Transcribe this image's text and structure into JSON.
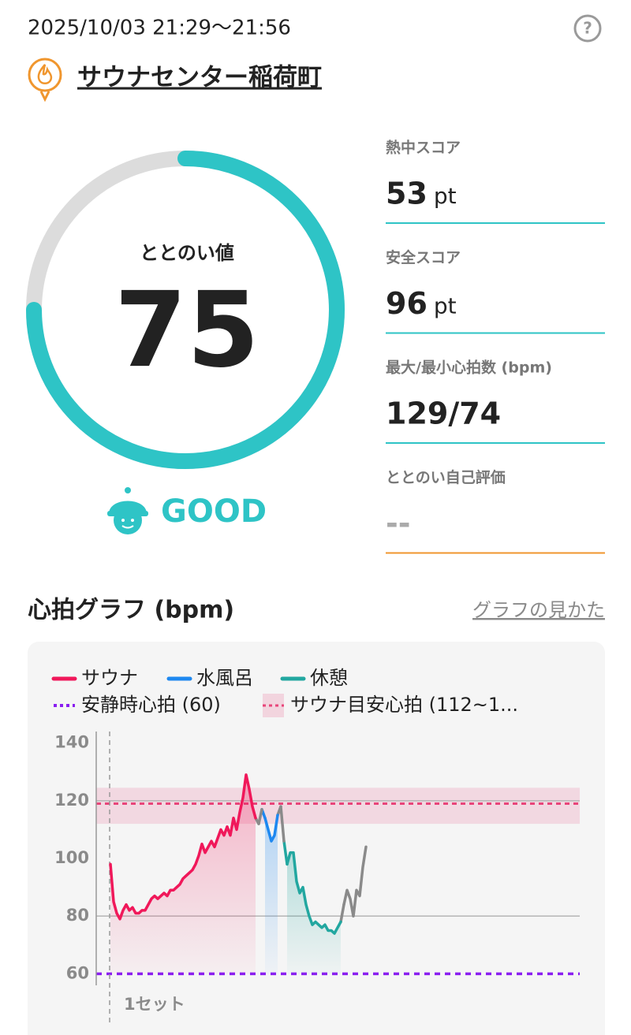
{
  "header": {
    "datetime": "2025/10/03 21:29～21:56",
    "facility": "サウナセンター稲荷町"
  },
  "score": {
    "label": "ととのい値",
    "value": 75,
    "max": 100,
    "rating": "GOOD"
  },
  "metrics": [
    {
      "label": "熱中スコア",
      "value": 53,
      "unit": "pt",
      "color": "#2ec4c6"
    },
    {
      "label": "安全スコア",
      "value": 96,
      "unit": "pt",
      "color": "#2ec4c6"
    },
    {
      "label": "最大/最小心拍数 (bpm)",
      "value": "129/74",
      "color": "#2ec4c6"
    },
    {
      "label": "ととのい自己評価",
      "value": "--",
      "color": "#f0962e"
    }
  ],
  "chart_section": {
    "title": "心拍グラフ (bpm)",
    "link": "グラフの見かた"
  },
  "chart_data": {
    "type": "line",
    "ylim": [
      56,
      144
    ],
    "yticks": [
      60,
      80,
      100,
      120,
      140
    ],
    "gridlines": [
      80,
      120
    ],
    "annotation": "1セット",
    "series": [
      {
        "name": "サウナ",
        "color": "#f0185a",
        "values": [
          98,
          85,
          81,
          79,
          82,
          84,
          82,
          83,
          81,
          81,
          82,
          82,
          84,
          86,
          87,
          86,
          87,
          88,
          87,
          89,
          89,
          90,
          91,
          93,
          94,
          95,
          96,
          98,
          101,
          105,
          102,
          104,
          106,
          104,
          107,
          110,
          108,
          111,
          108,
          114,
          110,
          116,
          121,
          129,
          124,
          118,
          114,
          null,
          null,
          null,
          null,
          null,
          null,
          null,
          null,
          null,
          null,
          null,
          null,
          null,
          null,
          null,
          null,
          null,
          null,
          null,
          null,
          null,
          null,
          null,
          null,
          null,
          null,
          null,
          null,
          null,
          null,
          null,
          null,
          null,
          null,
          null
        ]
      },
      {
        "name": "水風呂",
        "color": "#1e88f0",
        "values": [
          null,
          null,
          null,
          null,
          null,
          null,
          null,
          null,
          null,
          null,
          null,
          null,
          null,
          null,
          null,
          null,
          null,
          null,
          null,
          null,
          null,
          null,
          null,
          null,
          null,
          null,
          null,
          null,
          null,
          null,
          null,
          null,
          null,
          null,
          null,
          null,
          null,
          null,
          null,
          null,
          null,
          null,
          null,
          null,
          null,
          null,
          null,
          null,
          null,
          114,
          110,
          106,
          108,
          115,
          null,
          null,
          null,
          null,
          null,
          null,
          null,
          null,
          null,
          null,
          null,
          null,
          null,
          null,
          null,
          null,
          null,
          null,
          null,
          null,
          null,
          null,
          null,
          null,
          null,
          null,
          null,
          null
        ]
      },
      {
        "name": "休憩",
        "color": "#22a7a0",
        "values": [
          null,
          null,
          null,
          null,
          null,
          null,
          null,
          null,
          null,
          null,
          null,
          null,
          null,
          null,
          null,
          null,
          null,
          null,
          null,
          null,
          null,
          null,
          null,
          null,
          null,
          null,
          null,
          null,
          null,
          null,
          null,
          null,
          null,
          null,
          null,
          null,
          null,
          null,
          null,
          null,
          null,
          null,
          null,
          null,
          null,
          null,
          null,
          null,
          null,
          null,
          null,
          null,
          null,
          null,
          null,
          null,
          98,
          102,
          102,
          92,
          88,
          90,
          84,
          80,
          77,
          78,
          77,
          76,
          77,
          75,
          75,
          74,
          76,
          78,
          null,
          null,
          null,
          null,
          null,
          null,
          null,
          null
        ]
      },
      {
        "color": "#8a8a8a",
        "values": [
          null,
          null,
          null,
          null,
          null,
          null,
          null,
          null,
          null,
          null,
          null,
          null,
          null,
          null,
          null,
          null,
          null,
          null,
          null,
          null,
          null,
          null,
          null,
          null,
          null,
          null,
          null,
          null,
          null,
          null,
          null,
          null,
          null,
          null,
          null,
          null,
          null,
          null,
          null,
          null,
          null,
          null,
          null,
          null,
          null,
          null,
          null,
          112,
          117,
          null,
          null,
          null,
          null,
          null,
          118,
          106,
          null,
          null,
          null,
          null,
          null,
          null,
          null,
          null,
          null,
          null,
          null,
          null,
          null,
          null,
          null,
          null,
          null,
          null,
          84,
          89,
          86,
          80,
          89,
          87,
          97,
          104
        ]
      }
    ],
    "resting": {
      "name": "安静時心拍 (60)",
      "value": 60,
      "color": "#8a1ff0"
    },
    "target_zone": {
      "name": "サウナ目安心拍 (112~1...",
      "from": 112,
      "to": 124.5,
      "line": 119,
      "color": "#e8457a"
    }
  }
}
